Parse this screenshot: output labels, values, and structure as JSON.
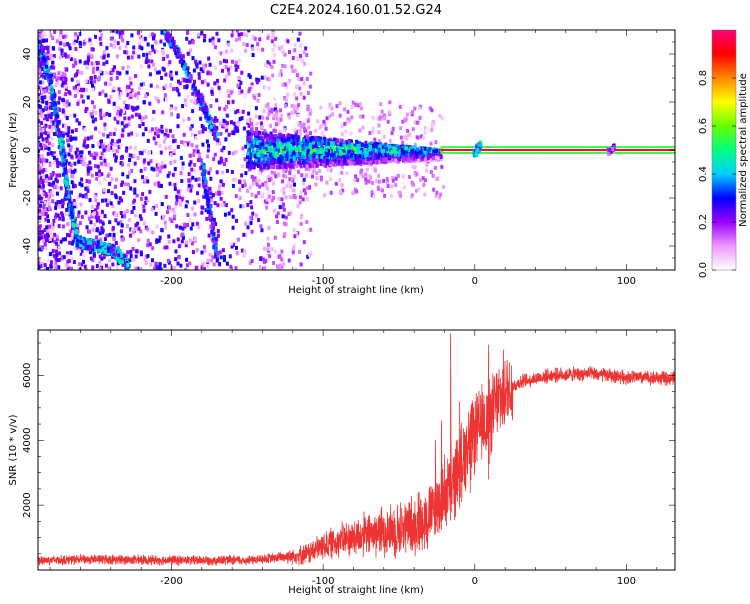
{
  "title": "C2E4.2024.160.01.52.G24",
  "chart_data": [
    {
      "type": "heatmap",
      "xlabel": "Height of straight line (km)",
      "ylabel": "Frequency (Hz)",
      "xlim": [
        -288,
        132
      ],
      "ylim": [
        -50,
        50
      ],
      "xticks": [
        -200,
        -100,
        0,
        100
      ],
      "yticks": [
        -40,
        -20,
        0,
        20,
        40
      ],
      "colorbar": {
        "label": "Normalized spectral amplitude",
        "range": [
          0,
          1
        ],
        "ticks": [
          "0.0",
          "0.2",
          "0.4",
          "0.6",
          "0.8"
        ],
        "colors": [
          "#ffffff",
          "#ee99ff",
          "#9900ff",
          "#0000ff",
          "#00d0ff",
          "#00ff80",
          "#66ff00",
          "#ffff00",
          "#ff8800",
          "#ff0000",
          "#ff0077"
        ]
      },
      "features": [
        {
          "desc": "steady carrier",
          "x": [
            -22,
            132
          ],
          "y": [
            0,
            0
          ],
          "amplitude": 0.95
        },
        {
          "desc": "central spread band",
          "x": [
            -150,
            -22
          ],
          "y_halfwidth": [
            8,
            2
          ],
          "amplitude": 0.4
        },
        {
          "desc": "low-frequency arc",
          "points": [
            [
              -288,
              45
            ],
            [
              -280,
              30
            ],
            [
              -272,
              0
            ],
            [
              -268,
              -20
            ],
            [
              -262,
              -38
            ],
            [
              -250,
              -40
            ],
            [
              -238,
              -42
            ],
            [
              -228,
              -48
            ]
          ],
          "amplitude": 0.35
        },
        {
          "desc": "high diagonal streak",
          "points": [
            [
              -205,
              50
            ],
            [
              -195,
              40
            ],
            [
              -180,
              20
            ],
            [
              -170,
              5
            ]
          ],
          "amplitude": 0.3
        }
      ]
    },
    {
      "type": "line",
      "xlabel": "Height of straight line (km)",
      "ylabel": "SNR (10 * v/v)",
      "xlim": [
        -288,
        132
      ],
      "ylim": [
        0,
        7400
      ],
      "xticks": [
        -200,
        -100,
        0,
        100
      ],
      "yticks": [
        2000,
        4000,
        6000
      ],
      "color": "#ee3333",
      "profile": [
        [
          -288,
          300
        ],
        [
          -250,
          330
        ],
        [
          -200,
          300
        ],
        [
          -150,
          300
        ],
        [
          -130,
          380
        ],
        [
          -110,
          500
        ],
        [
          -100,
          750
        ],
        [
          -90,
          900
        ],
        [
          -80,
          1000
        ],
        [
          -70,
          1100
        ],
        [
          -60,
          1200
        ],
        [
          -50,
          1250
        ],
        [
          -40,
          1400
        ],
        [
          -30,
          1650
        ],
        [
          -22,
          2200
        ],
        [
          -15,
          2600
        ],
        [
          -10,
          3200
        ],
        [
          -5,
          3800
        ],
        [
          0,
          4200
        ],
        [
          5,
          4500
        ],
        [
          10,
          4700
        ],
        [
          15,
          5200
        ],
        [
          20,
          5500
        ],
        [
          30,
          5800
        ],
        [
          50,
          6000
        ],
        [
          75,
          6050
        ],
        [
          100,
          5950
        ],
        [
          132,
          5900
        ]
      ],
      "spikes": [
        [
          -16,
          7300
        ],
        [
          -22,
          4600
        ],
        [
          -26,
          4000
        ],
        [
          9,
          6950
        ],
        [
          -10,
          5200
        ],
        [
          -3,
          4800
        ]
      ]
    }
  ]
}
